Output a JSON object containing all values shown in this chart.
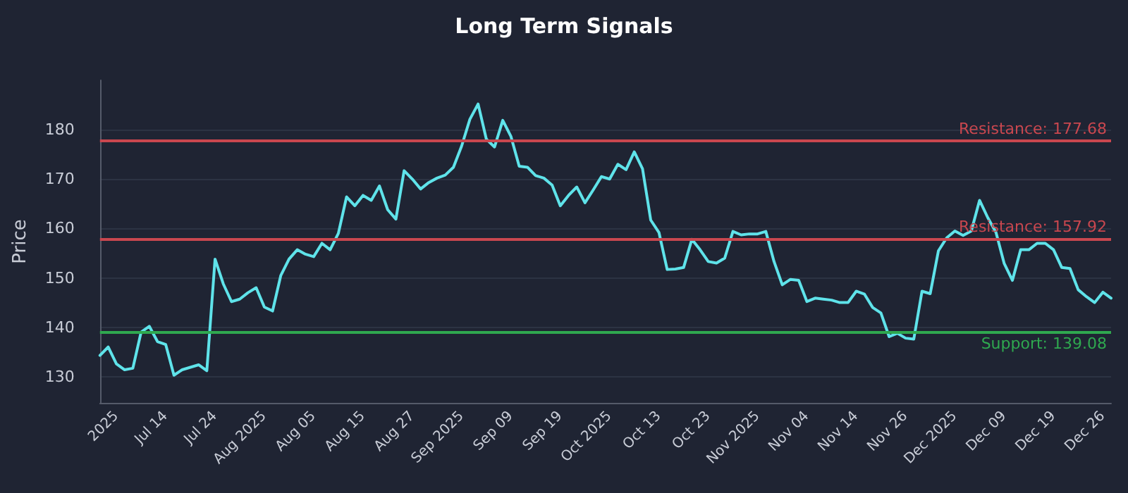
{
  "chart_data": {
    "type": "line",
    "title": "Long Term Signals",
    "ylabel": "Price",
    "categories": [
      null,
      null,
      "2025",
      null,
      null,
      null,
      null,
      null,
      "Jul 14",
      null,
      null,
      null,
      null,
      null,
      "Jul 24",
      null,
      null,
      null,
      null,
      null,
      "Aug 2025",
      null,
      null,
      null,
      null,
      null,
      "Aug 05",
      null,
      null,
      null,
      null,
      null,
      "Aug 15",
      null,
      null,
      null,
      null,
      null,
      "Aug 27",
      null,
      null,
      null,
      null,
      null,
      "Sep 2025",
      null,
      null,
      null,
      null,
      null,
      "Sep 09",
      null,
      null,
      null,
      null,
      null,
      "Sep 19",
      null,
      null,
      null,
      null,
      null,
      "Oct 2025",
      null,
      null,
      null,
      null,
      null,
      "Oct 13",
      null,
      null,
      null,
      null,
      null,
      "Oct 23",
      null,
      null,
      null,
      null,
      null,
      "Nov 2025",
      null,
      null,
      null,
      null,
      null,
      "Nov 04",
      null,
      null,
      null,
      null,
      null,
      "Nov 14",
      null,
      null,
      null,
      null,
      null,
      "Nov 26",
      null,
      null,
      null,
      null,
      null,
      "Dec 2025",
      null,
      null,
      null,
      null,
      null,
      "Dec 09",
      null,
      null,
      null,
      null,
      null,
      "Dec 19",
      null,
      null,
      null,
      null,
      null,
      "Dec 26",
      null
    ],
    "series": [
      {
        "color": "#5fe3ea",
        "values": [
          134.3,
          136.0,
          132.6,
          131.4,
          131.7,
          139.0,
          140.2,
          137.1,
          136.5,
          130.3,
          131.4,
          131.9,
          132.4,
          131.2,
          153.8,
          148.8,
          145.2,
          145.7,
          147.0,
          148.0,
          144.1,
          143.3,
          150.5,
          153.8,
          155.7,
          154.8,
          154.3,
          157.0,
          155.7,
          159.0,
          166.4,
          164.6,
          166.7,
          165.7,
          168.6,
          163.8,
          161.9,
          171.7,
          170.0,
          168.0,
          169.3,
          170.2,
          170.8,
          172.4,
          176.7,
          182.1,
          185.2,
          178.1,
          176.5,
          181.9,
          178.6,
          172.6,
          172.4,
          170.7,
          170.2,
          168.8,
          164.6,
          166.7,
          168.4,
          165.2,
          167.8,
          170.5,
          170.0,
          173.0,
          171.9,
          175.5,
          172.1,
          161.7,
          159.2,
          151.7,
          151.8,
          152.1,
          157.8,
          155.7,
          153.3,
          153.0,
          154.0,
          159.4,
          158.7,
          158.9,
          158.9,
          159.4,
          153.3,
          148.6,
          149.7,
          149.5,
          145.2,
          145.9,
          145.7,
          145.5,
          145.0,
          145.0,
          147.3,
          146.7,
          144.0,
          142.9,
          138.1,
          138.8,
          137.8,
          137.6,
          147.3,
          146.8,
          155.5,
          158.1,
          159.5,
          158.6,
          159.5,
          165.7,
          162.2,
          159.2,
          152.9,
          149.5,
          155.7,
          155.7,
          157.0,
          157.0,
          155.7,
          152.1,
          151.9,
          147.6,
          146.2,
          145.0,
          147.1,
          145.9
        ]
      }
    ],
    "ylim": [
      124.7,
      190
    ],
    "yticks": [
      130,
      140,
      150,
      160,
      170,
      180
    ],
    "grid": "y",
    "marker": "none",
    "line_style": "solid",
    "ref_lines": [
      {
        "axis": "y",
        "value": 177.68,
        "label": "Resistance: 177.68",
        "color": "#c9474f"
      },
      {
        "axis": "y",
        "value": 157.92,
        "label": "Resistance: 157.92",
        "color": "#c9474f"
      },
      {
        "axis": "y",
        "value": 139.08,
        "label": "Support: 139.08",
        "color": "#2fa84f"
      }
    ]
  }
}
